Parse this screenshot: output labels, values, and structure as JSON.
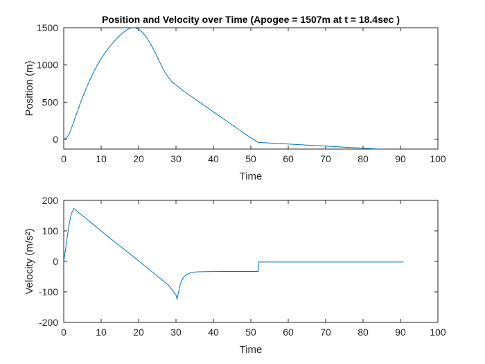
{
  "title": "Position and Velocity over Time (Apogee = 1507m at t = 18.4sec )",
  "colors": {
    "line": "#0072BD",
    "axis": "#262626",
    "background": "#ffffff"
  },
  "chart_data": [
    {
      "type": "line",
      "xlabel": "Time",
      "ylabel": "Position (m)",
      "xlim": [
        0,
        100
      ],
      "ylim": [
        -130,
        1500
      ],
      "xticks": [
        "0",
        "10",
        "20",
        "30",
        "40",
        "50",
        "60",
        "70",
        "80",
        "90",
        "100"
      ],
      "yticks": [
        "0",
        "500",
        "1000",
        "1500"
      ],
      "grid": false,
      "series": [
        {
          "x": [
            0,
            0.5,
            1,
            1.5,
            2,
            2.5,
            3,
            4,
            5,
            6,
            7,
            8,
            9,
            10,
            11,
            12,
            13,
            14,
            15,
            16,
            17,
            18,
            18.4,
            19,
            20,
            21,
            22,
            23,
            24,
            25,
            26,
            27,
            28,
            29,
            30,
            31,
            32,
            34,
            36,
            38,
            40,
            42,
            44,
            46,
            48,
            50,
            52,
            55,
            60,
            65,
            70,
            75,
            80,
            85,
            90
          ],
          "y": [
            0,
            12,
            38,
            80,
            140,
            210,
            285,
            425,
            560,
            685,
            800,
            905,
            1000,
            1085,
            1160,
            1230,
            1290,
            1345,
            1395,
            1440,
            1475,
            1500,
            1507,
            1500,
            1480,
            1440,
            1380,
            1300,
            1210,
            1110,
            1000,
            905,
            830,
            770,
            730,
            690,
            650,
            580,
            510,
            440,
            370,
            300,
            230,
            160,
            90,
            22,
            -40,
            -48,
            -62,
            -76,
            -90,
            -104,
            -118,
            -132,
            -146
          ]
        }
      ]
    },
    {
      "type": "line",
      "xlabel": "Time",
      "ylabel": "Velocity (m/s²)",
      "xlim": [
        0,
        100
      ],
      "ylim": [
        -200,
        200
      ],
      "xticks": [
        "0",
        "10",
        "20",
        "30",
        "40",
        "50",
        "60",
        "70",
        "80",
        "90",
        "100"
      ],
      "yticks": [
        "-200",
        "-100",
        "0",
        "100",
        "200"
      ],
      "grid": false,
      "series": [
        {
          "x": [
            0,
            0.5,
            1,
            1.5,
            2,
            2.7,
            3,
            4,
            5,
            6,
            8,
            10,
            12,
            14,
            16,
            18,
            18.4,
            20,
            22,
            24,
            26,
            28,
            29,
            30,
            30.3,
            30.6,
            31,
            31.5,
            32,
            33,
            34,
            35,
            36,
            38,
            40,
            42,
            44,
            46,
            48,
            50,
            51.9,
            52,
            52.1,
            55,
            60,
            70,
            80,
            90.8
          ],
          "y": [
            0,
            40,
            85,
            125,
            155,
            174,
            170,
            160,
            150,
            140,
            120,
            100,
            80,
            60,
            41,
            22,
            18,
            2,
            -18,
            -38,
            -58,
            -78,
            -94,
            -110,
            -124,
            -105,
            -82,
            -64,
            -52,
            -42,
            -37,
            -35,
            -34,
            -33.5,
            -33.2,
            -33,
            -33,
            -33,
            -33,
            -33,
            -33,
            -33,
            -2,
            -2,
            -2,
            -2,
            -2,
            -2
          ]
        }
      ]
    }
  ]
}
